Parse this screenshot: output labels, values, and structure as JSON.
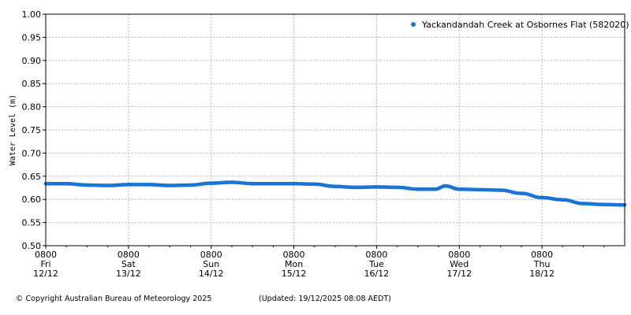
{
  "chart_data": {
    "type": "line",
    "title": "",
    "xlabel": "",
    "ylabel": "Water Level (m)",
    "ylim": [
      0.5,
      1.0
    ],
    "yticks": [
      "0.50",
      "0.55",
      "0.60",
      "0.65",
      "0.70",
      "0.75",
      "0.80",
      "0.85",
      "0.90",
      "0.95",
      "1.00"
    ],
    "xlim": [
      "2025-12-12 08:00",
      "2025-12-19 08:00"
    ],
    "xticks": [
      {
        "time": "0800",
        "day": "Fri",
        "date": "12/12"
      },
      {
        "time": "0800",
        "day": "Sat",
        "date": "13/12"
      },
      {
        "time": "0800",
        "day": "Sun",
        "date": "14/12"
      },
      {
        "time": "0800",
        "day": "Mon",
        "date": "15/12"
      },
      {
        "time": "0800",
        "day": "Tue",
        "date": "16/12"
      },
      {
        "time": "0800",
        "day": "Wed",
        "date": "17/12"
      },
      {
        "time": "0800",
        "day": "Thu",
        "date": "18/12"
      }
    ],
    "grid": true,
    "legend_position": "top-right",
    "series": [
      {
        "name": "Yackandandah Creek at Osbornes Flat (582020)",
        "color": "#1874d6",
        "x": [
          "2025-12-12 08:00",
          "2025-12-12 14:00",
          "2025-12-12 20:00",
          "2025-12-13 02:00",
          "2025-12-13 08:00",
          "2025-12-13 14:00",
          "2025-12-13 20:00",
          "2025-12-14 02:00",
          "2025-12-14 08:00",
          "2025-12-14 14:00",
          "2025-12-14 20:00",
          "2025-12-15 02:00",
          "2025-12-15 08:00",
          "2025-12-15 14:00",
          "2025-12-15 20:00",
          "2025-12-16 02:00",
          "2025-12-16 08:00",
          "2025-12-16 14:00",
          "2025-12-16 20:00",
          "2025-12-17 01:00",
          "2025-12-17 04:00",
          "2025-12-17 08:00",
          "2025-12-17 14:00",
          "2025-12-17 20:00",
          "2025-12-18 02:00",
          "2025-12-18 08:00",
          "2025-12-18 14:00",
          "2025-12-18 20:00",
          "2025-12-19 02:00",
          "2025-12-19 08:00"
        ],
        "y": [
          0.634,
          0.634,
          0.631,
          0.63,
          0.632,
          0.632,
          0.63,
          0.631,
          0.635,
          0.637,
          0.634,
          0.634,
          0.634,
          0.633,
          0.628,
          0.626,
          0.627,
          0.626,
          0.622,
          0.622,
          0.629,
          0.622,
          0.621,
          0.62,
          0.613,
          0.604,
          0.599,
          0.591,
          0.589,
          0.588
        ]
      }
    ]
  },
  "footer": {
    "copyright": "© Copyright Australian Bureau of Meteorology 2025",
    "updated": "(Updated: 19/12/2025 08:08 AEDT)"
  }
}
